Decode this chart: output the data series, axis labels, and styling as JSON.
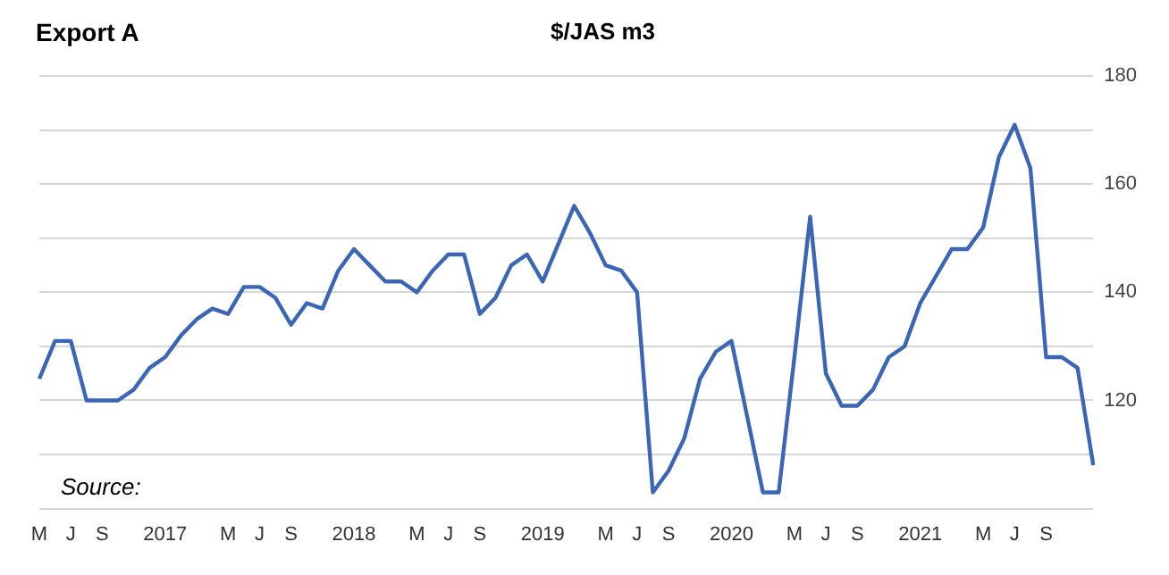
{
  "chart_data": {
    "type": "line",
    "title": "Export A",
    "subtitle": "$/JAS m3",
    "annotations": [
      "Source:"
    ],
    "categories": [
      "M",
      null,
      "J",
      null,
      "S",
      null,
      null,
      null,
      "2017",
      null,
      null,
      null,
      "M",
      null,
      "J",
      null,
      "S",
      null,
      null,
      null,
      "2018",
      null,
      null,
      null,
      "M",
      null,
      "J",
      null,
      "S",
      null,
      null,
      null,
      "2019",
      null,
      null,
      null,
      "M",
      null,
      "J",
      null,
      "S",
      null,
      null,
      null,
      "2020",
      null,
      null,
      null,
      "M",
      null,
      "J",
      null,
      "S",
      null,
      null,
      null,
      "2021",
      null,
      null,
      null,
      "M",
      null,
      "J",
      null,
      "S",
      null,
      null,
      null
    ],
    "series": [
      {
        "color": "#3a66b5",
        "values": [
          124,
          131,
          131,
          120,
          120,
          120,
          122,
          126,
          128,
          132,
          135,
          137,
          136,
          141,
          141,
          139,
          134,
          138,
          137,
          144,
          148,
          145,
          142,
          142,
          140,
          144,
          147,
          147,
          136,
          139,
          145,
          147,
          142,
          149,
          156,
          151,
          145,
          144,
          140,
          103,
          107,
          113,
          124,
          129,
          131,
          117,
          103,
          103,
          128,
          154,
          125,
          119,
          119,
          122,
          128,
          130,
          138,
          143,
          148,
          148,
          152,
          165,
          171,
          163,
          128,
          128,
          126,
          108
        ]
      }
    ],
    "ylim": [
      100,
      180
    ],
    "yticks": [
      {
        "value": 100,
        "label": null
      },
      {
        "value": 110,
        "label": null
      },
      120,
      {
        "value": 130,
        "label": null
      },
      140,
      {
        "value": 150,
        "label": null
      },
      160,
      {
        "value": 170,
        "label": null
      },
      180
    ],
    "grid": "y",
    "marker": "none",
    "line_style": "solid"
  }
}
